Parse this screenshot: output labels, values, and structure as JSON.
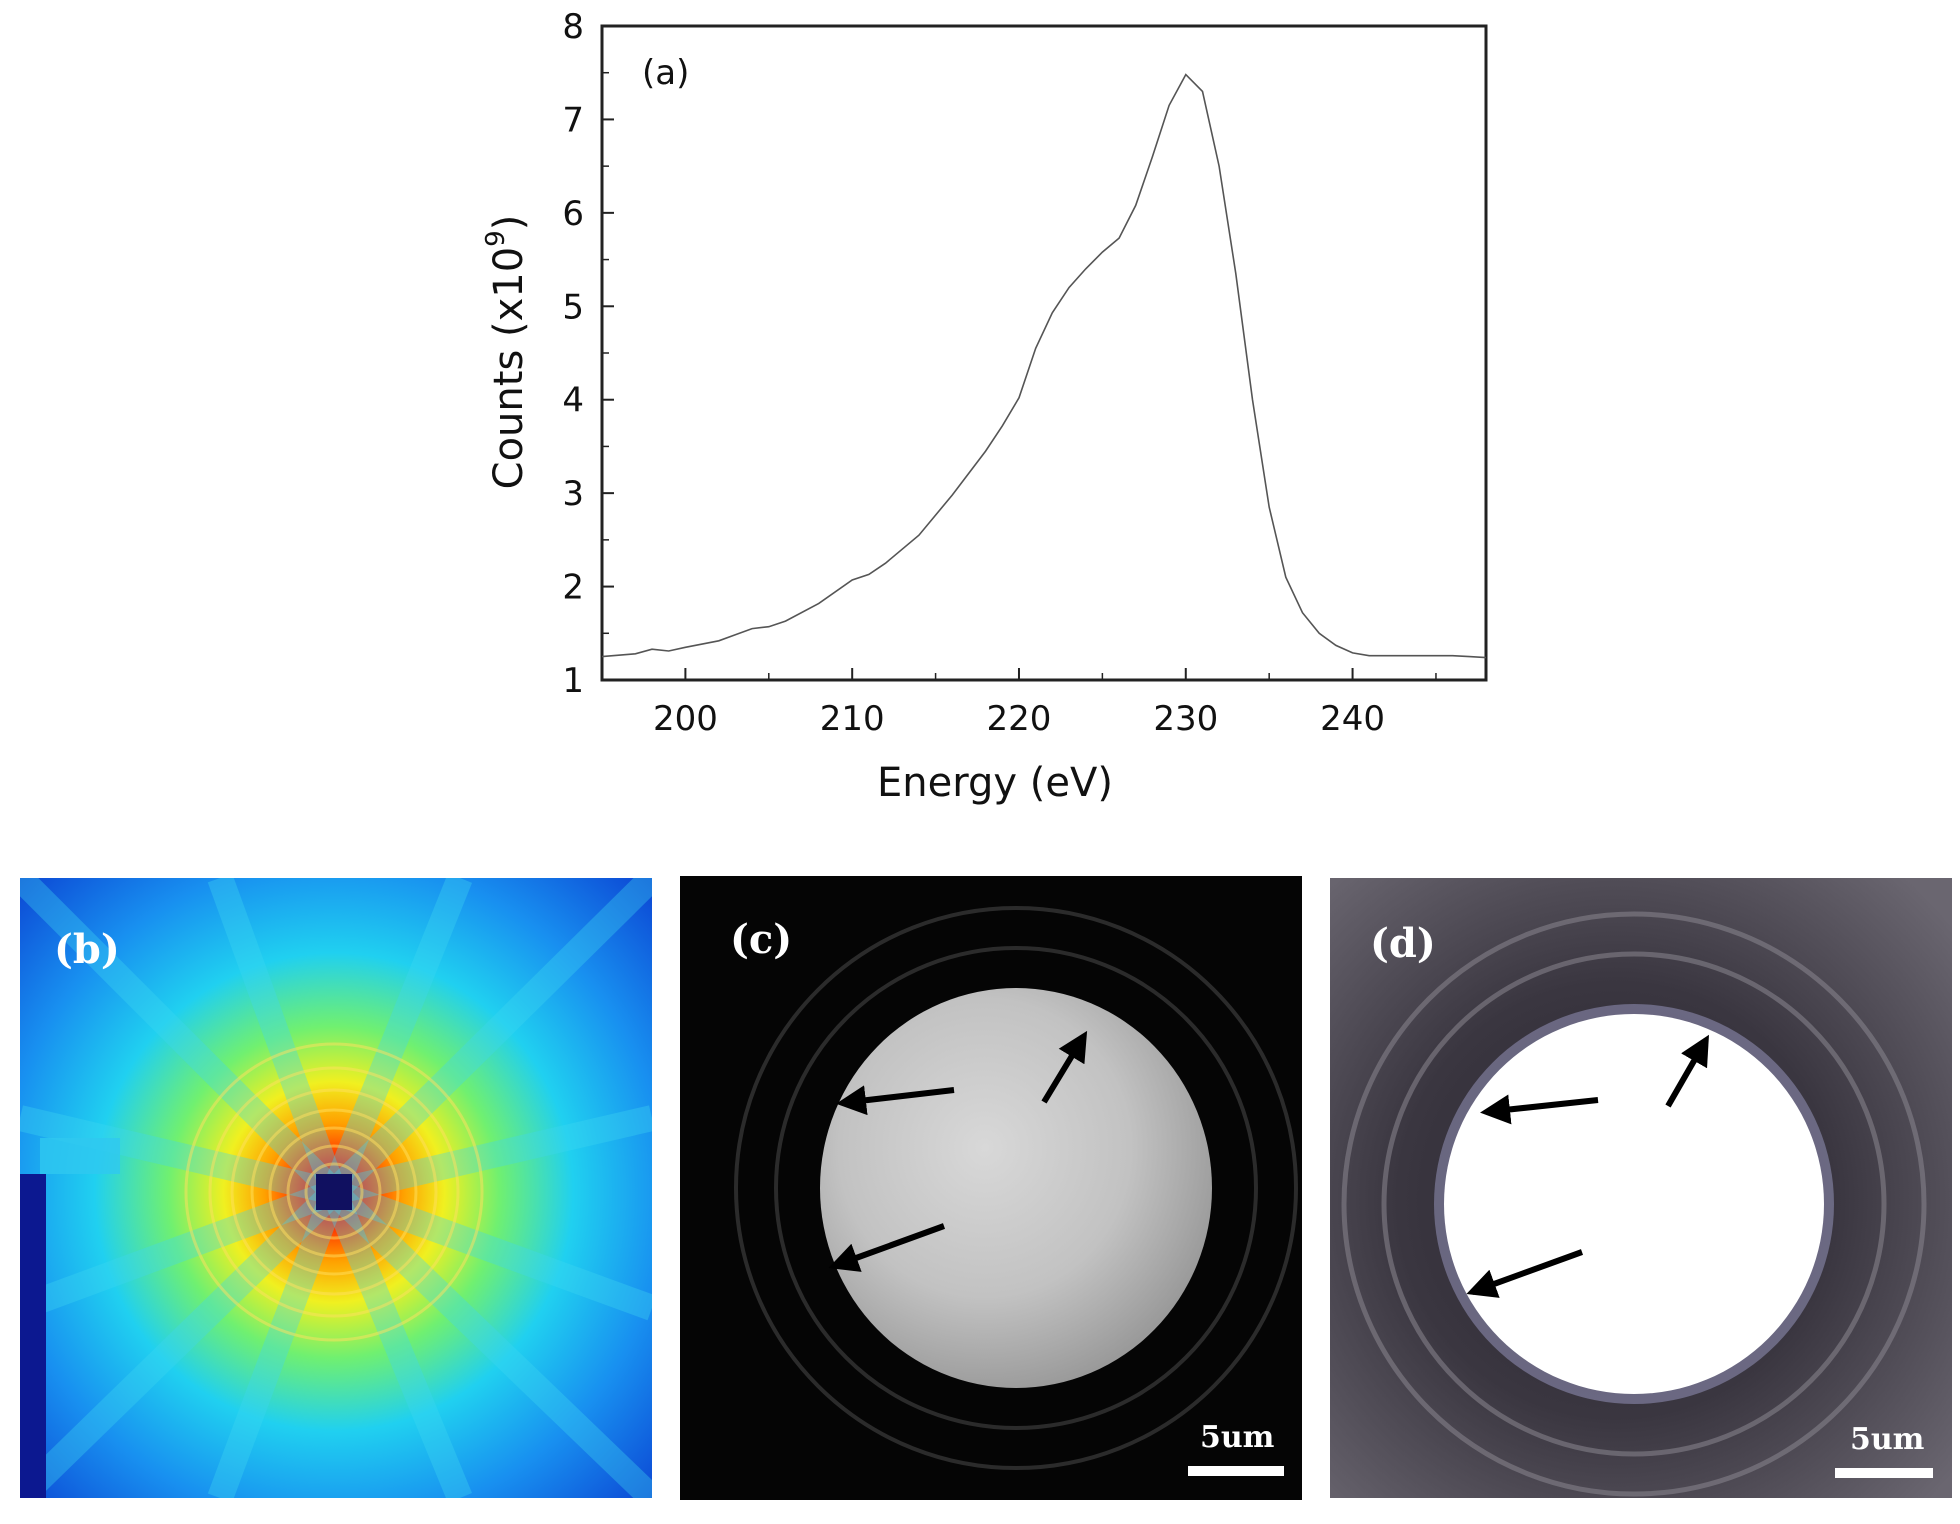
{
  "chart_data": {
    "type": "line",
    "panel_label": "(a)",
    "title": "",
    "xlabel": "Energy (eV)",
    "ylabel_main": "Counts (x10",
    "ylabel_exp": "9",
    "ylabel_close": ")",
    "xlim": [
      195,
      248
    ],
    "ylim": [
      1,
      8
    ],
    "xticks": [
      200,
      210,
      220,
      230,
      240
    ],
    "yticks": [
      1,
      2,
      3,
      4,
      5,
      6,
      7,
      8
    ],
    "grid": false,
    "series": [
      {
        "x": [
          195,
          197,
          198,
          199,
          200,
          202,
          204,
          205,
          206,
          208,
          210,
          211,
          212,
          214,
          216,
          218,
          219,
          220,
          221,
          222,
          223,
          224,
          225,
          226,
          227,
          228,
          229,
          230,
          231,
          232,
          233,
          234,
          235,
          236,
          237,
          238,
          239,
          240,
          241,
          242,
          244,
          246,
          247,
          248
        ],
        "y": [
          1.25,
          1.28,
          1.33,
          1.31,
          1.35,
          1.42,
          1.55,
          1.57,
          1.63,
          1.82,
          2.07,
          2.13,
          2.25,
          2.55,
          2.98,
          3.45,
          3.72,
          4.02,
          4.55,
          4.93,
          5.2,
          5.4,
          5.58,
          5.73,
          6.08,
          6.6,
          7.15,
          7.48,
          7.3,
          6.5,
          5.35,
          4.0,
          2.85,
          2.1,
          1.72,
          1.5,
          1.37,
          1.29,
          1.26,
          1.26,
          1.26,
          1.26,
          1.25,
          1.24
        ]
      }
    ]
  },
  "panels": {
    "b": {
      "label": "(b)"
    },
    "c": {
      "label": "(c)",
      "scale": "5um"
    },
    "d": {
      "label": "(d)",
      "scale": "5um"
    }
  }
}
